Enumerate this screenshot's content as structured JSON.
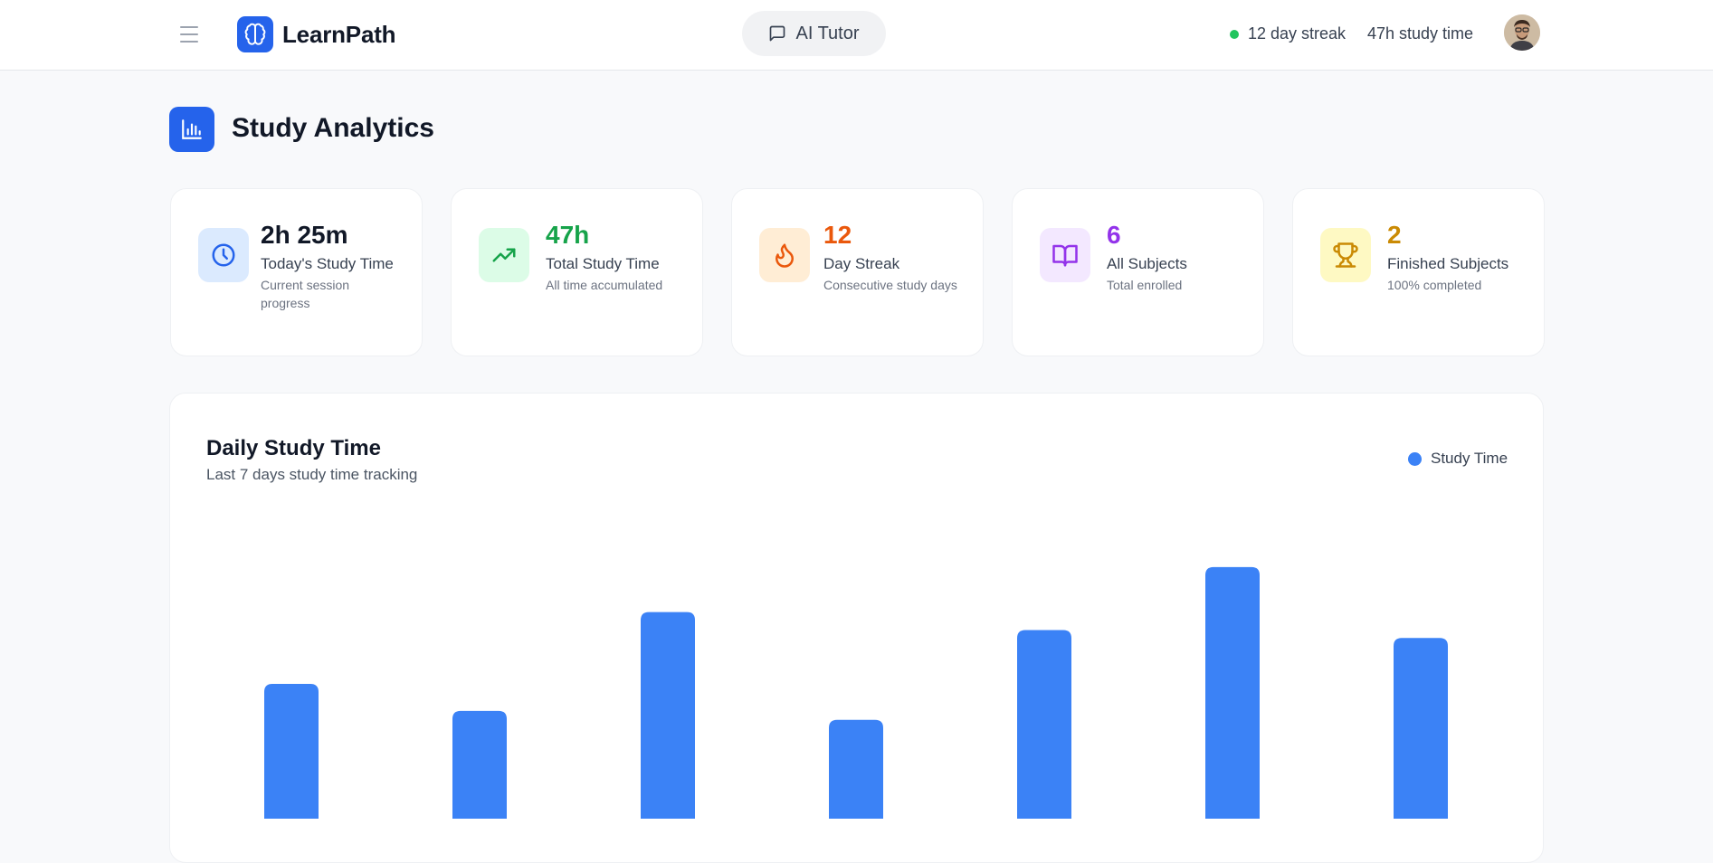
{
  "header": {
    "brand_name": "LearnPath",
    "ai_tutor_label": "AI Tutor",
    "streak_text": "12 day streak",
    "study_time_text": "47h study time"
  },
  "page": {
    "title": "Study Analytics"
  },
  "stats": [
    {
      "value": "2h 25m",
      "label": "Today's Study Time",
      "sub": "Current session progress",
      "icon": "clock-icon",
      "color": "#111827",
      "icon_color": "#2563eb",
      "icon_bg": "#dbeafe"
    },
    {
      "value": "47h",
      "label": "Total Study Time",
      "sub": "All time accumulated",
      "icon": "trending-up-icon",
      "color": "#16a34a",
      "icon_color": "#16a34a",
      "icon_bg": "#dcfce7"
    },
    {
      "value": "12",
      "label": "Day Streak",
      "sub": "Consecutive study days",
      "icon": "flame-icon",
      "color": "#ea580c",
      "icon_color": "#ea580c",
      "icon_bg": "#ffedd5"
    },
    {
      "value": "6",
      "label": "All Subjects",
      "sub": "Total enrolled",
      "icon": "book-open-icon",
      "color": "#9333ea",
      "icon_color": "#9333ea",
      "icon_bg": "#f3e8ff"
    },
    {
      "value": "2",
      "label": "Finished Subjects",
      "sub": "100% completed",
      "icon": "trophy-icon",
      "color": "#ca8a04",
      "icon_color": "#ca8a04",
      "icon_bg": "#fef9c3"
    }
  ],
  "chart": {
    "title": "Daily Study Time",
    "subtitle": "Last 7 days study time tracking",
    "legend_label": "Study Time",
    "bar_color": "#3b82f6"
  },
  "chart_data": {
    "type": "bar",
    "title": "Daily Study Time",
    "subtitle": "Last 7 days study time tracking",
    "categories": [
      "",
      "",
      "",
      "",
      "",
      "",
      ""
    ],
    "series": [
      {
        "name": "Study Time",
        "values": [
          135,
          108,
          207,
          99,
          189,
          252,
          181
        ]
      }
    ],
    "legend": "top-right",
    "ylim": [
      0,
      290
    ],
    "grid": false
  }
}
